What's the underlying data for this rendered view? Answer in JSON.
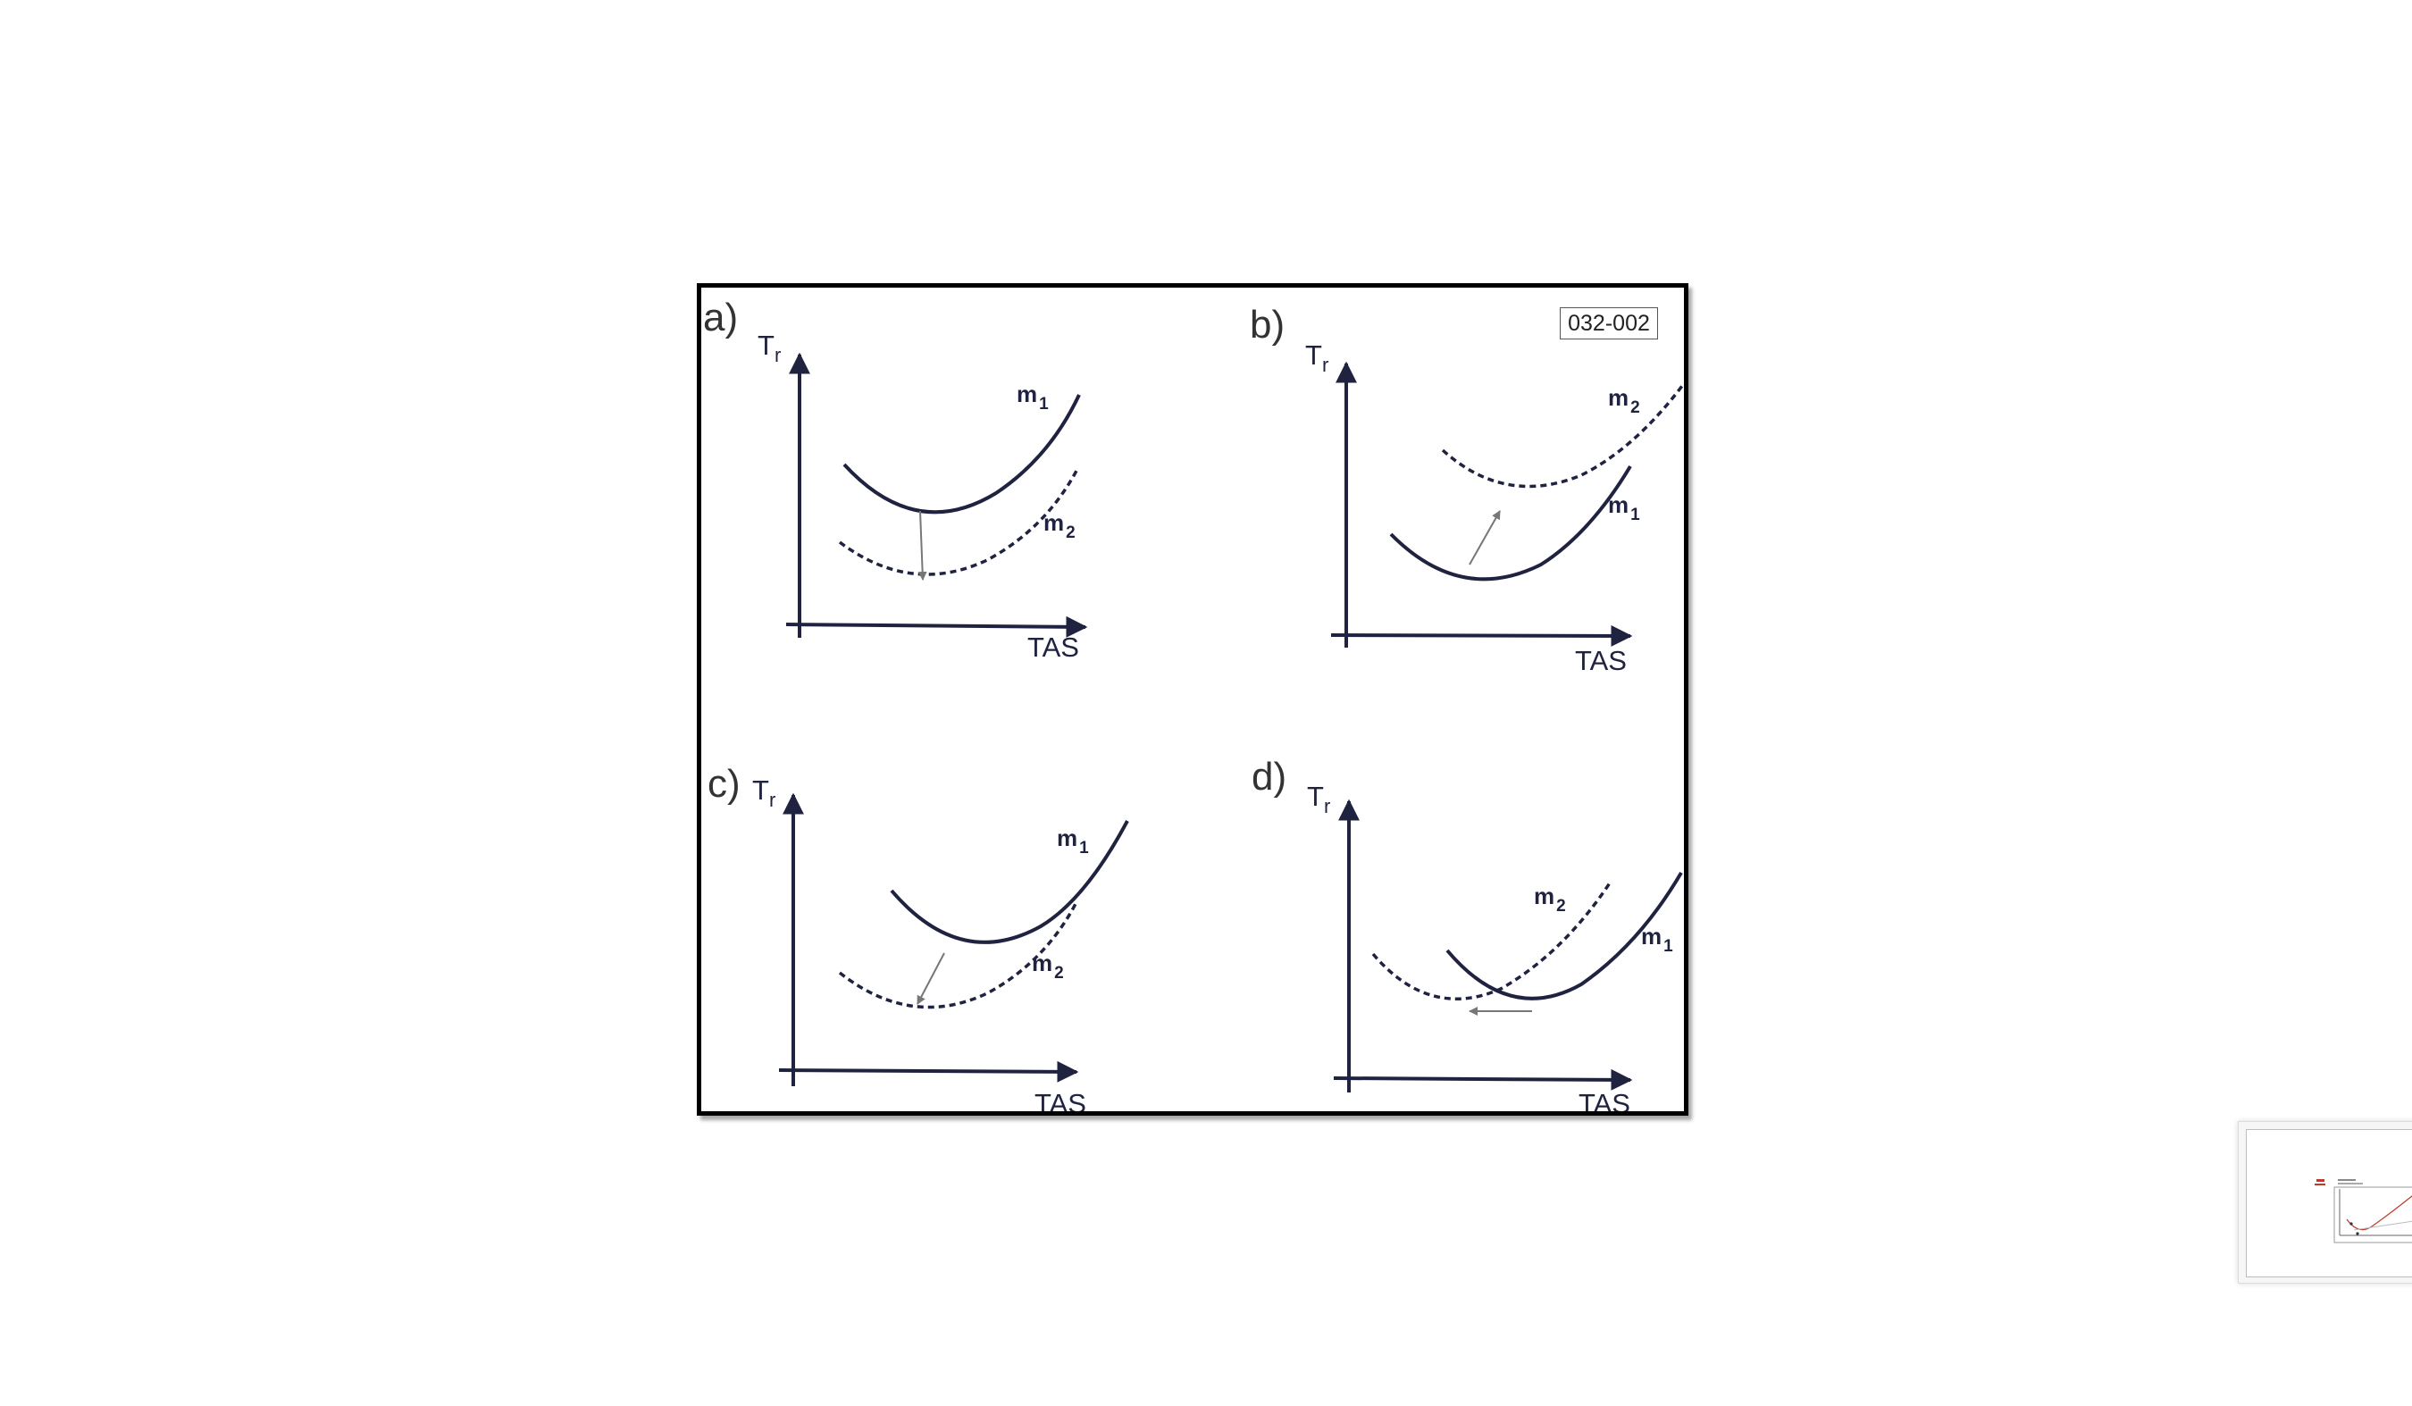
{
  "figure": {
    "code": "032-002",
    "panels": [
      {
        "id": "a",
        "label": "a)",
        "y_axis": "T",
        "y_axis_sub": "r",
        "x_axis": "TAS",
        "curves": [
          {
            "name": "m",
            "sub": "1",
            "style": "solid"
          },
          {
            "name": "m",
            "sub": "2",
            "style": "dashed"
          }
        ],
        "shift": "down"
      },
      {
        "id": "b",
        "label": "b)",
        "y_axis": "T",
        "y_axis_sub": "r",
        "x_axis": "TAS",
        "curves": [
          {
            "name": "m",
            "sub": "1",
            "style": "solid"
          },
          {
            "name": "m",
            "sub": "2",
            "style": "dashed"
          }
        ],
        "shift": "up-right"
      },
      {
        "id": "c",
        "label": "c)",
        "y_axis": "T",
        "y_axis_sub": "r",
        "x_axis": "TAS",
        "curves": [
          {
            "name": "m",
            "sub": "1",
            "style": "solid"
          },
          {
            "name": "m",
            "sub": "2",
            "style": "dashed"
          }
        ],
        "shift": "down-left"
      },
      {
        "id": "d",
        "label": "d)",
        "y_axis": "T",
        "y_axis_sub": "r",
        "x_axis": "TAS",
        "curves": [
          {
            "name": "m",
            "sub": "1",
            "style": "solid"
          },
          {
            "name": "m",
            "sub": "2",
            "style": "dashed"
          }
        ],
        "shift": "left"
      }
    ]
  },
  "colors": {
    "line": "#1f2340",
    "arrow": "#777777",
    "frame": "#000000"
  }
}
